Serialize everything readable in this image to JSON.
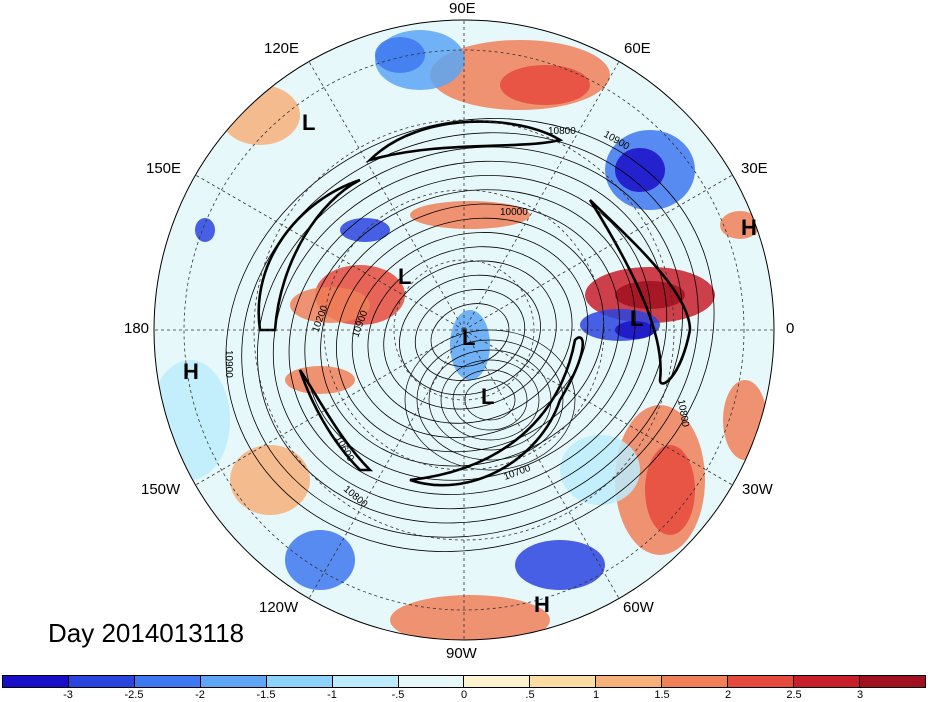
{
  "map": {
    "longitude_labels": [
      "90E",
      "60E",
      "30E",
      "0",
      "30W",
      "60W",
      "90W",
      "120W",
      "150W",
      "180",
      "150E",
      "120E"
    ],
    "pressure_centers": [
      "L",
      "L",
      "L",
      "L",
      "L",
      "H",
      "H",
      "H"
    ],
    "contour_labels": [
      "10800",
      "10900",
      "10000",
      "10200",
      "10900",
      "10900",
      "10600",
      "10800",
      "10700",
      "10800"
    ],
    "day_label": "Day 2014013118"
  },
  "colorbar": {
    "colors": [
      "#1a0fc8",
      "#2a44e0",
      "#3d78f0",
      "#5ca6f5",
      "#8cd2fa",
      "#bcecfb",
      "#e6f8fa",
      "#fbf2cf",
      "#fbdca2",
      "#f6b07a",
      "#f08058",
      "#e64a3c",
      "#c81e2a",
      "#a0101e"
    ],
    "ticks": [
      "-3",
      "-2.5",
      "-2",
      "-1.5",
      "-1",
      "-.5",
      "0",
      ".5",
      "1",
      "1.5",
      "2",
      "2.5",
      "3"
    ]
  }
}
